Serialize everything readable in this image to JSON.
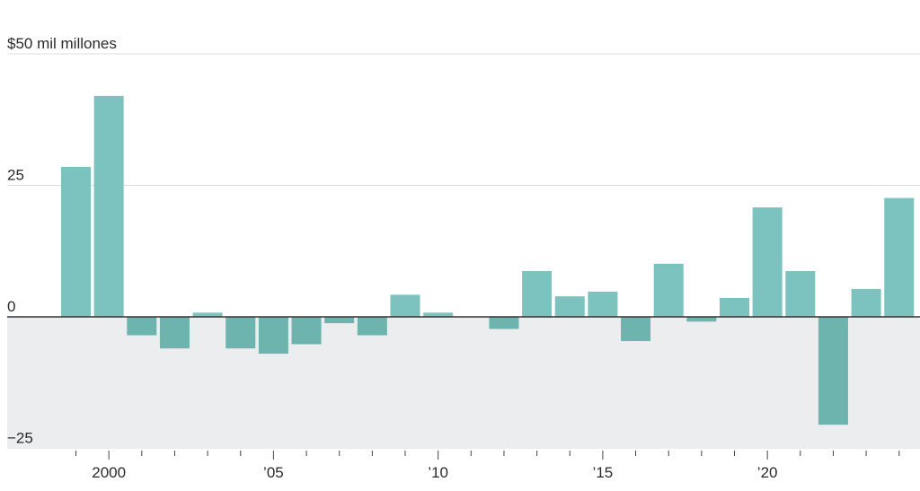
{
  "chart_data": {
    "type": "bar",
    "unit_label": "$50 mil millones",
    "y_ticks": [
      {
        "value": 50,
        "label": "$50 mil millones"
      },
      {
        "value": 25,
        "label": "25"
      },
      {
        "value": 0,
        "label": "0"
      },
      {
        "value": -25,
        "label": "−25"
      }
    ],
    "ylim": [
      -25,
      50
    ],
    "x_ticks": [
      {
        "year": 2000,
        "label": "2000"
      },
      {
        "year": 2005,
        "label": "’05"
      },
      {
        "year": 2010,
        "label": "’10"
      },
      {
        "year": 2015,
        "label": "’15"
      },
      {
        "year": 2020,
        "label": "’20"
      }
    ],
    "categories": [
      1999,
      2000,
      2001,
      2002,
      2003,
      2004,
      2005,
      2006,
      2007,
      2008,
      2009,
      2010,
      2011,
      2012,
      2013,
      2014,
      2015,
      2016,
      2017,
      2018,
      2019,
      2020,
      2021,
      2022,
      2023,
      2024
    ],
    "values": [
      28.5,
      42,
      -3.5,
      -6,
      0.8,
      -6,
      -7,
      -5.2,
      -1.2,
      -3.5,
      4.2,
      0.8,
      0,
      -2.3,
      8.7,
      3.9,
      4.8,
      -4.6,
      10.1,
      -0.9,
      3.6,
      20.8,
      8.7,
      -20.5,
      5.3,
      22.6
    ],
    "colors": {
      "bar": "#7cc2be",
      "bar_negative_area": "#6db3ae",
      "negative_background": "#ecedee",
      "gridline": "#dcdcdc",
      "zero_line": "#333333",
      "text": "#2a2a2a"
    }
  }
}
